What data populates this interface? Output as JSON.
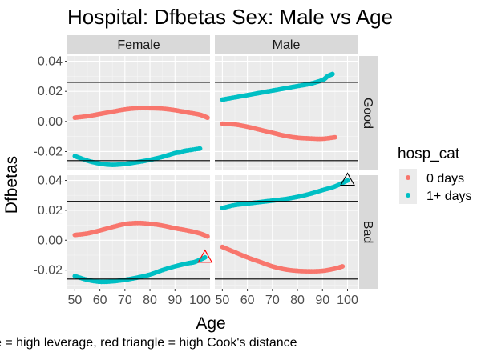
{
  "chart_data": {
    "type": "scatter",
    "title": "Hospital: Dfbetas Sex: Male vs Age",
    "xlabel": "Age",
    "ylabel": "Dfbetas",
    "caption": "e = high leverage, red triangle = high Cook's distance",
    "xlim": [
      47,
      104
    ],
    "ylim": [
      -0.0325,
      0.0435
    ],
    "x_ticks": [
      50,
      60,
      70,
      80,
      90,
      100
    ],
    "y_ticks": [
      -0.02,
      0.0,
      0.02,
      0.04
    ],
    "x_tick_labels": [
      "50",
      "60",
      "70",
      "80",
      "90",
      "100"
    ],
    "y_tick_labels": [
      "-0.02",
      "0.00",
      "0.02",
      "0.04"
    ],
    "reference_lines": [
      -0.026,
      0.026
    ],
    "grid": true,
    "facet_columns": [
      "Female",
      "Male"
    ],
    "facet_rows": [
      "Good",
      "Bad"
    ],
    "legend": {
      "title": "hosp_cat",
      "position": "right",
      "entries": [
        {
          "label": "0 days",
          "color": "#F8766D"
        },
        {
          "label": "1+ days",
          "color": "#00BFC4"
        }
      ]
    },
    "panels": [
      {
        "col": "Female",
        "row": "Good",
        "series": [
          {
            "legend": "0 days",
            "x": [
              50,
              55,
              60,
              65,
              70,
              75,
              80,
              85,
              90,
              95,
              100,
              103
            ],
            "y": [
              0.0025,
              0.0035,
              0.005,
              0.0065,
              0.008,
              0.0088,
              0.0088,
              0.0085,
              0.0075,
              0.006,
              0.0045,
              0.0025
            ]
          },
          {
            "legend": "1+ days",
            "x": [
              50,
              55,
              60,
              65,
              70,
              75,
              80,
              85,
              90,
              92,
              94,
              100
            ],
            "y": [
              -0.023,
              -0.026,
              -0.028,
              -0.0288,
              -0.0282,
              -0.027,
              -0.0255,
              -0.0235,
              -0.021,
              -0.0205,
              -0.0195,
              -0.018
            ]
          }
        ],
        "markers": []
      },
      {
        "col": "Male",
        "row": "Good",
        "series": [
          {
            "legend": "0 days",
            "x": [
              50,
              55,
              60,
              65,
              70,
              75,
              80,
              85,
              90,
              95
            ],
            "y": [
              -0.0015,
              -0.002,
              -0.0035,
              -0.0055,
              -0.0075,
              -0.0095,
              -0.0108,
              -0.0113,
              -0.0115,
              -0.0105
            ]
          },
          {
            "legend": "1+ days",
            "x": [
              50,
              55,
              60,
              65,
              70,
              75,
              80,
              85,
              90,
              92,
              94
            ],
            "y": [
              0.0145,
              0.016,
              0.0175,
              0.019,
              0.0205,
              0.022,
              0.0235,
              0.025,
              0.0275,
              0.03,
              0.0315
            ]
          }
        ],
        "markers": []
      },
      {
        "col": "Female",
        "row": "Bad",
        "series": [
          {
            "legend": "0 days",
            "x": [
              50,
              55,
              60,
              65,
              70,
              75,
              80,
              85,
              90,
              95,
              100,
              103
            ],
            "y": [
              0.0035,
              0.0045,
              0.0065,
              0.0088,
              0.0108,
              0.0115,
              0.011,
              0.0098,
              0.008,
              0.0065,
              0.0045,
              0.0025
            ]
          },
          {
            "legend": "1+ days",
            "x": [
              50,
              55,
              60,
              65,
              70,
              75,
              80,
              85,
              90,
              95,
              98,
              102
            ],
            "y": [
              -0.024,
              -0.0265,
              -0.0278,
              -0.0275,
              -0.0265,
              -0.025,
              -0.023,
              -0.02,
              -0.0175,
              -0.0155,
              -0.0145,
              -0.0115
            ]
          }
        ],
        "markers": [
          {
            "x": 102,
            "y": -0.0115,
            "type": "triangle",
            "color": "red"
          }
        ]
      },
      {
        "col": "Male",
        "row": "Bad",
        "series": [
          {
            "legend": "0 days",
            "x": [
              50,
              55,
              60,
              65,
              70,
              75,
              80,
              85,
              90,
              95,
              98
            ],
            "y": [
              -0.0045,
              -0.008,
              -0.0115,
              -0.0145,
              -0.0175,
              -0.0195,
              -0.0205,
              -0.0208,
              -0.0205,
              -0.019,
              -0.0175
            ]
          },
          {
            "legend": "1+ days",
            "x": [
              50,
              55,
              60,
              65,
              70,
              75,
              80,
              85,
              90,
              95,
              100
            ],
            "y": [
              0.0215,
              0.0235,
              0.0245,
              0.0255,
              0.0265,
              0.0275,
              0.029,
              0.031,
              0.0335,
              0.036,
              0.04
            ]
          }
        ],
        "markers": [
          {
            "x": 100,
            "y": 0.04,
            "type": "triangle",
            "color": "black"
          }
        ]
      }
    ]
  }
}
